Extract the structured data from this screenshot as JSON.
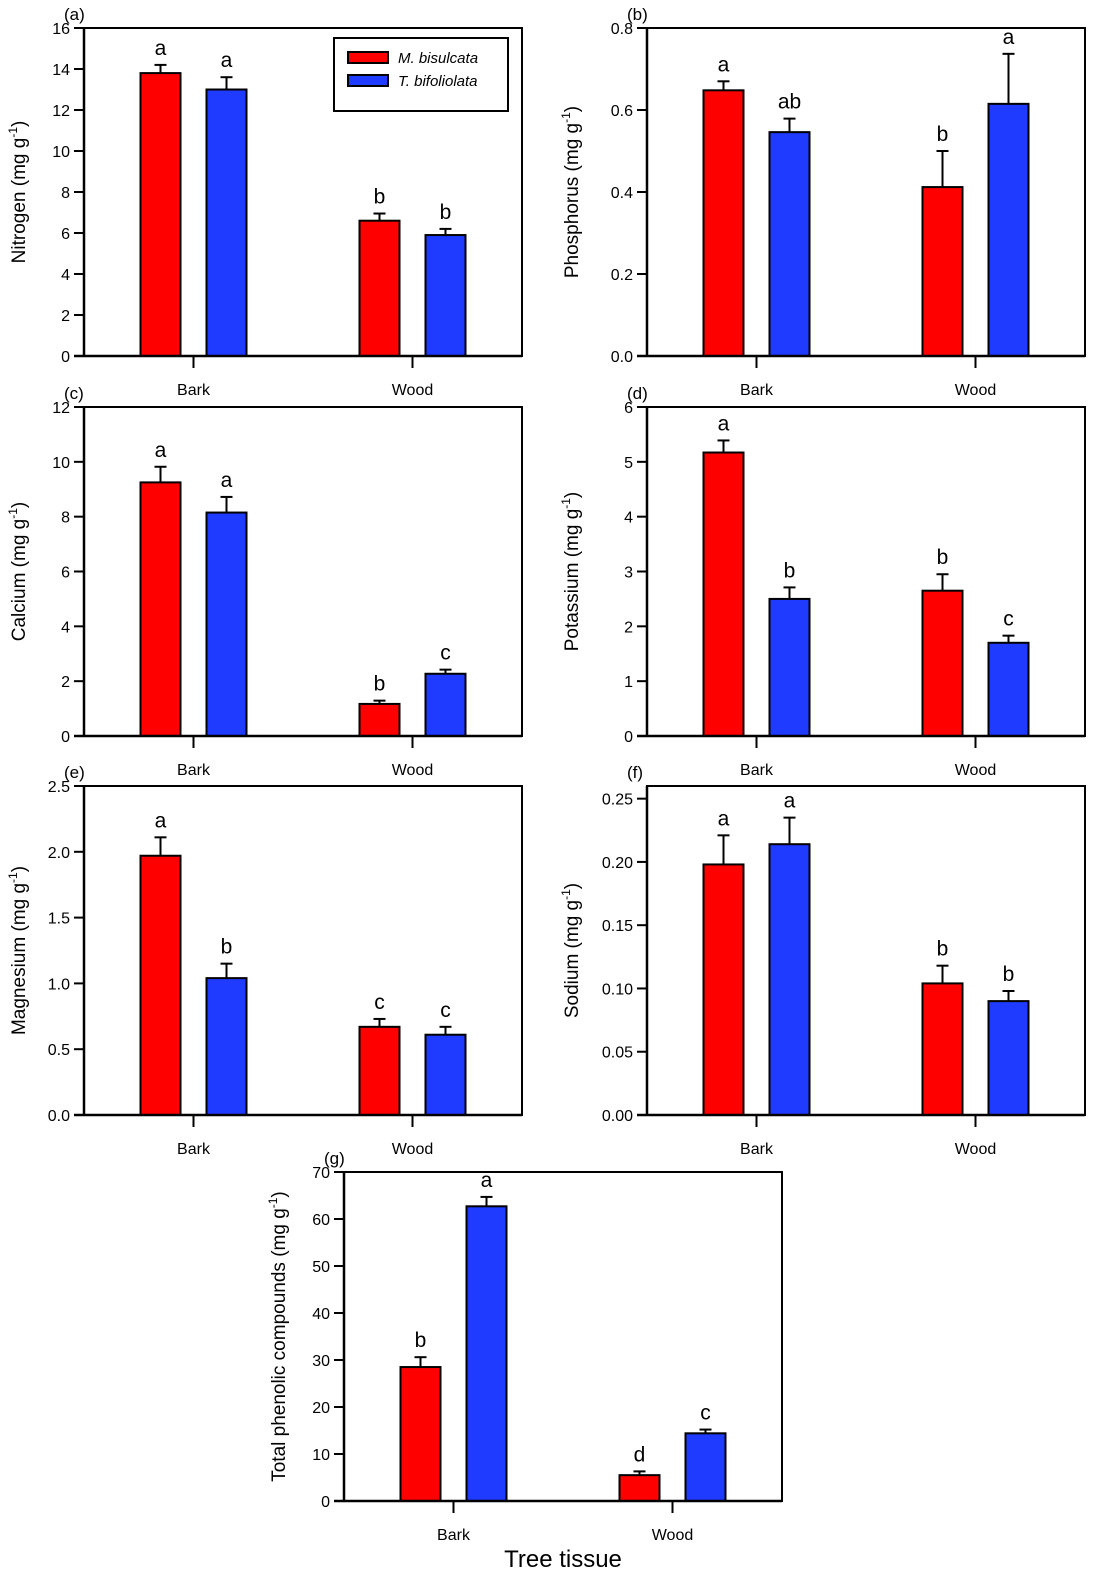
{
  "legend": {
    "series": [
      {
        "name": "M. bisulcata",
        "color": "#ff0000"
      },
      {
        "name": "T. bifoliolata",
        "color": "#1f3bff"
      }
    ],
    "placement": "top-right of panel (a)"
  },
  "x_title": "Tree tissue",
  "chart_data": [
    {
      "panel": "(a)",
      "type": "bar",
      "ylabel": "Nitrogen (mg g-1)",
      "categories": [
        "Bark",
        "Wood"
      ],
      "ylim": [
        0,
        16
      ],
      "yticks": [
        "0",
        "2",
        "4",
        "6",
        "8",
        "10",
        "12",
        "14",
        "16"
      ],
      "series": [
        {
          "name": "M. bisulcata",
          "values": [
            13.8,
            6.6
          ],
          "errors": [
            0.4,
            0.35
          ],
          "letters": [
            "a",
            "b"
          ]
        },
        {
          "name": "T. bifoliolata",
          "values": [
            13.0,
            5.9
          ],
          "errors": [
            0.6,
            0.3
          ],
          "letters": [
            "a",
            "b"
          ]
        }
      ]
    },
    {
      "panel": "(b)",
      "type": "bar",
      "ylabel": "Phosphorus (mg g-1)",
      "categories": [
        "Bark",
        "Wood"
      ],
      "ylim": [
        0,
        0.8
      ],
      "yticks": [
        "0.0",
        "0.2",
        "0.4",
        "0.6",
        "0.8"
      ],
      "series": [
        {
          "name": "M. bisulcata",
          "values": [
            0.648,
            0.412
          ],
          "errors": [
            0.022,
            0.088
          ],
          "letters": [
            "a",
            "b"
          ]
        },
        {
          "name": "T. bifoliolata",
          "values": [
            0.546,
            0.615
          ],
          "errors": [
            0.033,
            0.122
          ],
          "letters": [
            "ab",
            "a"
          ]
        }
      ]
    },
    {
      "panel": "(c)",
      "type": "bar",
      "ylabel": "Calcium (mg g-1)",
      "categories": [
        "Bark",
        "Wood"
      ],
      "ylim": [
        0,
        12
      ],
      "yticks": [
        "0",
        "2",
        "4",
        "6",
        "8",
        "10",
        "12"
      ],
      "series": [
        {
          "name": "M. bisulcata",
          "values": [
            9.25,
            1.17
          ],
          "errors": [
            0.57,
            0.12
          ],
          "letters": [
            "a",
            "b"
          ]
        },
        {
          "name": "T. bifoliolata",
          "values": [
            8.15,
            2.27
          ],
          "errors": [
            0.57,
            0.15
          ],
          "letters": [
            "a",
            "c"
          ]
        }
      ]
    },
    {
      "panel": "(d)",
      "type": "bar",
      "ylabel": "Potassium (mg g-1)",
      "categories": [
        "Bark",
        "Wood"
      ],
      "ylim": [
        0,
        6
      ],
      "yticks": [
        "0",
        "1",
        "2",
        "3",
        "4",
        "5",
        "6"
      ],
      "series": [
        {
          "name": "M. bisulcata",
          "values": [
            5.17,
            2.65
          ],
          "errors": [
            0.22,
            0.3
          ],
          "letters": [
            "a",
            "b"
          ]
        },
        {
          "name": "T. bifoliolata",
          "values": [
            2.5,
            1.7
          ],
          "errors": [
            0.21,
            0.13
          ],
          "letters": [
            "b",
            "c"
          ]
        }
      ]
    },
    {
      "panel": "(e)",
      "type": "bar",
      "ylabel": "Magnesium (mg g-1)",
      "categories": [
        "Bark",
        "Wood"
      ],
      "ylim": [
        0,
        2.5
      ],
      "yticks": [
        "0.0",
        "0.5",
        "1.0",
        "1.5",
        "2.0",
        "2.5"
      ],
      "series": [
        {
          "name": "M. bisulcata",
          "values": [
            1.97,
            0.67
          ],
          "errors": [
            0.14,
            0.06
          ],
          "letters": [
            "a",
            "c"
          ]
        },
        {
          "name": "T. bifoliolata",
          "values": [
            1.04,
            0.61
          ],
          "errors": [
            0.11,
            0.06
          ],
          "letters": [
            "b",
            "c"
          ]
        }
      ]
    },
    {
      "panel": "(f)",
      "type": "bar",
      "ylabel": "Sodium (mg g-1)",
      "categories": [
        "Bark",
        "Wood"
      ],
      "ylim": [
        0,
        0.26
      ],
      "yticks": [
        "0.00",
        "0.05",
        "0.10",
        "0.15",
        "0.20",
        "0.25"
      ],
      "series": [
        {
          "name": "M. bisulcata",
          "values": [
            0.198,
            0.104
          ],
          "errors": [
            0.023,
            0.014
          ],
          "letters": [
            "a",
            "b"
          ]
        },
        {
          "name": "T. bifoliolata",
          "values": [
            0.214,
            0.09
          ],
          "errors": [
            0.021,
            0.008
          ],
          "letters": [
            "a",
            "b"
          ]
        }
      ]
    },
    {
      "panel": "(g)",
      "type": "bar",
      "ylabel": "Total phenolic compounds (mg g-1)",
      "xlabel": "Tree tissue",
      "categories": [
        "Bark",
        "Wood"
      ],
      "ylim": [
        0,
        70
      ],
      "yticks": [
        "0",
        "10",
        "20",
        "30",
        "40",
        "50",
        "60",
        "70"
      ],
      "series": [
        {
          "name": "M. bisulcata",
          "values": [
            28.5,
            5.5
          ],
          "errors": [
            2.1,
            0.8
          ],
          "letters": [
            "b",
            "d"
          ]
        },
        {
          "name": "T. bifoliolata",
          "values": [
            62.7,
            14.4
          ],
          "errors": [
            2.0,
            0.8
          ],
          "letters": [
            "a",
            "c"
          ]
        }
      ]
    }
  ]
}
